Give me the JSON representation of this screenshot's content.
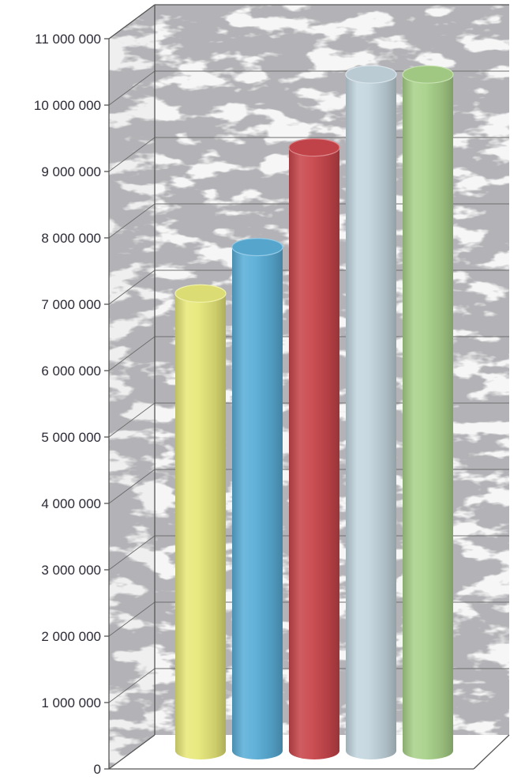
{
  "chart_data": {
    "type": "bar",
    "style": "3d-cylinder",
    "title": "",
    "xlabel": "",
    "ylabel": "",
    "categories": [
      "",
      "",
      "",
      "",
      ""
    ],
    "values": [
      6900000,
      7600000,
      9100000,
      10200000,
      10200000
    ],
    "colors": [
      "#e8e87a",
      "#5aaed8",
      "#c9474c",
      "#c4d6df",
      "#a9d28a"
    ],
    "ylim": [
      0,
      11000000
    ],
    "yticks": [
      0,
      1000000,
      2000000,
      3000000,
      4000000,
      5000000,
      6000000,
      7000000,
      8000000,
      9000000,
      10000000,
      11000000
    ],
    "ytick_labels": [
      "0",
      "1 000 000",
      "2 000 000",
      "3 000 000",
      "4 000 000",
      "5 000 000",
      "6 000 000",
      "7 000 000",
      "8 000 000",
      "9 000 000",
      "10 000 000",
      "11 000 000"
    ],
    "grid": true,
    "legend": "none",
    "background": "grey-marble-texture"
  }
}
